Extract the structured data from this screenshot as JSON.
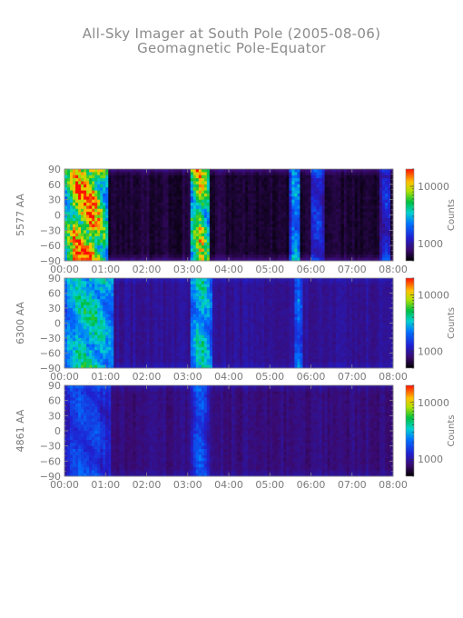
{
  "title": "All-Sky Imager at South Pole (2005-08-06)",
  "subtitle": "Geomagnetic Pole-Equator",
  "chart_data": [
    {
      "type": "heatmap",
      "ylabel": "5577 AA",
      "colorbar_label": "Counts",
      "colorbar_ticks": [
        "10000",
        "1000"
      ],
      "colorbar_range": [
        500,
        20000
      ],
      "colorbar_scale": "log",
      "x_ticks": [
        "00:00",
        "01:00",
        "02:00",
        "03:00",
        "04:00",
        "05:00",
        "06:00",
        "07:00",
        "08:00"
      ],
      "y_ticks": [
        "90",
        "60",
        "30",
        "0",
        "−30",
        "−60",
        "−90"
      ],
      "ylim": [
        -90,
        90
      ],
      "xlim_hours": [
        0,
        8
      ],
      "events": [
        {
          "t0": 0.0,
          "t1": 1.05,
          "strength": 1.0
        },
        {
          "t0": 3.05,
          "t1": 3.55,
          "strength": 0.8
        },
        {
          "t0": 5.5,
          "t1": 5.75,
          "strength": 0.45
        },
        {
          "t0": 6.0,
          "t1": 6.3,
          "strength": 0.3
        },
        {
          "t0": 7.7,
          "t1": 7.95,
          "strength": 0.25
        }
      ],
      "background_level": 0.06
    },
    {
      "type": "heatmap",
      "ylabel": "6300 AA",
      "colorbar_label": "Counts",
      "colorbar_ticks": [
        "10000",
        "1000"
      ],
      "colorbar_range": [
        500,
        20000
      ],
      "colorbar_scale": "log",
      "x_ticks": [
        "00:00",
        "01:00",
        "02:00",
        "03:00",
        "04:00",
        "05:00",
        "06:00",
        "07:00",
        "08:00"
      ],
      "y_ticks": [
        "90",
        "60",
        "30",
        "0",
        "−30",
        "−60",
        "−90"
      ],
      "ylim": [
        -90,
        90
      ],
      "xlim_hours": [
        0,
        8
      ],
      "events": [
        {
          "t0": 0.0,
          "t1": 1.2,
          "strength": 0.45
        },
        {
          "t0": 3.05,
          "t1": 3.6,
          "strength": 0.42
        },
        {
          "t0": 5.6,
          "t1": 5.8,
          "strength": 0.25
        }
      ],
      "background_level": 0.17
    },
    {
      "type": "heatmap",
      "ylabel": "4861 AA",
      "colorbar_label": "Counts",
      "colorbar_ticks": [
        "10000",
        "1000"
      ],
      "colorbar_range": [
        500,
        20000
      ],
      "colorbar_scale": "log",
      "x_ticks": [
        "00:00",
        "01:00",
        "02:00",
        "03:00",
        "04:00",
        "05:00",
        "06:00",
        "07:00",
        "08:00"
      ],
      "y_ticks": [
        "90",
        "60",
        "30",
        "0",
        "−30",
        "−60",
        "−90"
      ],
      "ylim": [
        -90,
        90
      ],
      "xlim_hours": [
        0,
        8
      ],
      "events": [
        {
          "t0": 0.0,
          "t1": 1.1,
          "strength": 0.22
        },
        {
          "t0": 3.1,
          "t1": 3.5,
          "strength": 0.25
        }
      ],
      "background_level": 0.14
    }
  ],
  "colors": {
    "text": "#7a7a7a",
    "background": "#ffffff"
  }
}
